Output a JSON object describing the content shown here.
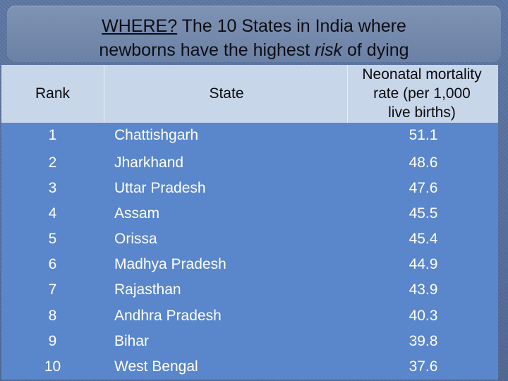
{
  "title": {
    "where": "WHERE?",
    "part1": " The 10  States in India  where",
    "part2": "newborns have the highest ",
    "risk": "risk",
    "part3": " of dying"
  },
  "table": {
    "headers": {
      "rank": "Rank",
      "state": "State",
      "rate_line1": "Neonatal mortality",
      "rate_line2": "rate (per 1,000",
      "rate_line3": "live births)"
    },
    "rows": [
      {
        "rank": "1",
        "state": "Chattishgarh",
        "rate": "51.1"
      },
      {
        "rank": "2",
        "state": "Jharkhand",
        "rate": "48.6"
      },
      {
        "rank": "3",
        "state": "Uttar Pradesh",
        "rate": "47.6"
      },
      {
        "rank": "4",
        "state": "Assam",
        "rate": "45.5"
      },
      {
        "rank": "5",
        "state": "Orissa",
        "rate": "45.4"
      },
      {
        "rank": "6",
        "state": "Madhya Pradesh",
        "rate": "44.9"
      },
      {
        "rank": "7",
        "state": "Rajasthan",
        "rate": "43.9"
      },
      {
        "rank": "8",
        "state": "Andhra Pradesh",
        "rate": "40.3"
      },
      {
        "rank": "9",
        "state": "Bihar",
        "rate": "39.8"
      },
      {
        "rank": "10",
        "state": "West Bengal",
        "rate": "37.6"
      }
    ]
  },
  "colors": {
    "background": "#56709a",
    "title_box": "#7588ab",
    "header_band": "#c8d6ea",
    "body_band": "#5a86cb",
    "body_text": "#ffffff"
  }
}
